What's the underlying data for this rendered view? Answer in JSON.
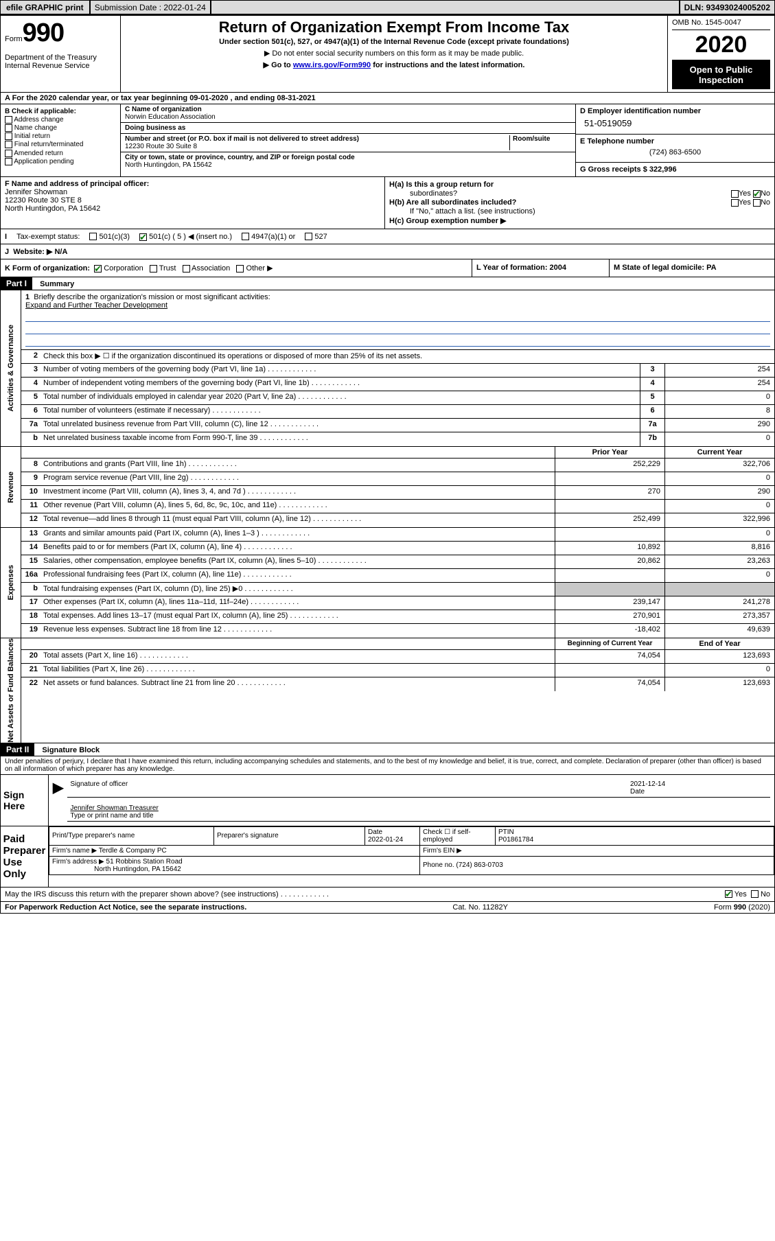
{
  "topbar": {
    "efile": "efile GRAPHIC print",
    "submission_label": "Submission Date : 2022-01-24",
    "dln": "DLN: 93493024005202"
  },
  "header": {
    "form_word": "Form",
    "form_num": "990",
    "dept": "Department of the Treasury\nInternal Revenue Service",
    "title": "Return of Organization Exempt From Income Tax",
    "sub1": "Under section 501(c), 527, or 4947(a)(1) of the Internal Revenue Code (except private foundations)",
    "sub2": "▶ Do not enter social security numbers on this form as it may be made public.",
    "sub3_pre": "▶ Go to ",
    "sub3_link": "www.irs.gov/Form990",
    "sub3_post": " for instructions and the latest information.",
    "omb": "OMB No. 1545-0047",
    "year": "2020",
    "inspect": "Open to Public Inspection"
  },
  "line_a": "A  For the 2020 calendar year, or tax year beginning 09-01-2020    , and ending 08-31-2021",
  "section_b": {
    "label": "B Check if applicable:",
    "address": "Address change",
    "name": "Name change",
    "initial": "Initial return",
    "final": "Final return/terminated",
    "amended": "Amended return",
    "app": "Application pending"
  },
  "section_c": {
    "name_lbl": "C Name of organization",
    "name": "Norwin Education Association",
    "dba_lbl": "Doing business as",
    "addr_lbl": "Number and street (or P.O. box if mail is not delivered to street address)",
    "room_lbl": "Room/suite",
    "addr": "12230 Route 30 Suite 8",
    "city_lbl": "City or town, state or province, country, and ZIP or foreign postal code",
    "city": "North Huntingdon, PA  15642"
  },
  "section_d": {
    "lbl": "D Employer identification number",
    "ein": "51-0519059",
    "tel_lbl": "E Telephone number",
    "tel": "(724) 863-6500",
    "gross_lbl": "G Gross receipts $ 322,996"
  },
  "section_f": {
    "lbl": "F  Name and address of principal officer:",
    "name": "Jennifer Showman",
    "addr1": "12230 Route 30 STE 8",
    "addr2": "North Huntingdon, PA  15642"
  },
  "section_h": {
    "a": "H(a)  Is this a group return for",
    "a2": "subordinates?",
    "b": "H(b)  Are all subordinates included?",
    "b2": "If \"No,\" attach a list. (see instructions)",
    "c": "H(c)  Group exemption number ▶",
    "yes": "Yes",
    "no": "No"
  },
  "tax_status": {
    "lbl": "Tax-exempt status:",
    "c3": "501(c)(3)",
    "c5": "501(c) ( 5 ) ◀ (insert no.)",
    "a1": "4947(a)(1) or",
    "s527": "527"
  },
  "row_j": {
    "lbl": "J",
    "txt": "Website: ▶  N/A"
  },
  "row_k": {
    "lbl": "K Form of organization:",
    "corp": "Corporation",
    "trust": "Trust",
    "assoc": "Association",
    "other": "Other ▶"
  },
  "row_l": "L Year of formation: 2004",
  "row_m": "M State of legal domicile: PA",
  "part1": {
    "hdr": "Part I",
    "title": "Summary"
  },
  "summary": {
    "sec1_label": "Activities & Governance",
    "line1_lbl": "Briefly describe the organization's mission or most significant activities:",
    "line1_txt": "Expand and Further Teacher Development",
    "line2": "Check this box ▶ ☐  if the organization discontinued its operations or disposed of more than 25% of its net assets.",
    "rows_ag": [
      {
        "n": "3",
        "t": "Number of voting members of the governing body (Part VI, line 1a)",
        "box": "3",
        "v": "254"
      },
      {
        "n": "4",
        "t": "Number of independent voting members of the governing body (Part VI, line 1b)",
        "box": "4",
        "v": "254"
      },
      {
        "n": "5",
        "t": "Total number of individuals employed in calendar year 2020 (Part V, line 2a)",
        "box": "5",
        "v": "0"
      },
      {
        "n": "6",
        "t": "Total number of volunteers (estimate if necessary)",
        "box": "6",
        "v": "8"
      },
      {
        "n": "7a",
        "t": "Total unrelated business revenue from Part VIII, column (C), line 12",
        "box": "7a",
        "v": "290"
      },
      {
        "n": "b",
        "t": "Net unrelated business taxable income from Form 990-T, line 39",
        "box": "7b",
        "v": "0"
      }
    ],
    "hdr_prior": "Prior Year",
    "hdr_current": "Current Year",
    "sec2_label": "Revenue",
    "rows_rev": [
      {
        "n": "8",
        "t": "Contributions and grants (Part VIII, line 1h)",
        "p": "252,229",
        "c": "322,706"
      },
      {
        "n": "9",
        "t": "Program service revenue (Part VIII, line 2g)",
        "p": "",
        "c": "0"
      },
      {
        "n": "10",
        "t": "Investment income (Part VIII, column (A), lines 3, 4, and 7d )",
        "p": "270",
        "c": "290"
      },
      {
        "n": "11",
        "t": "Other revenue (Part VIII, column (A), lines 5, 6d, 8c, 9c, 10c, and 11e)",
        "p": "",
        "c": "0"
      },
      {
        "n": "12",
        "t": "Total revenue—add lines 8 through 11 (must equal Part VIII, column (A), line 12)",
        "p": "252,499",
        "c": "322,996"
      }
    ],
    "sec3_label": "Expenses",
    "rows_exp": [
      {
        "n": "13",
        "t": "Grants and similar amounts paid (Part IX, column (A), lines 1–3 )",
        "p": "",
        "c": "0"
      },
      {
        "n": "14",
        "t": "Benefits paid to or for members (Part IX, column (A), line 4)",
        "p": "10,892",
        "c": "8,816"
      },
      {
        "n": "15",
        "t": "Salaries, other compensation, employee benefits (Part IX, column (A), lines 5–10)",
        "p": "20,862",
        "c": "23,263"
      },
      {
        "n": "16a",
        "t": "Professional fundraising fees (Part IX, column (A), line 11e)",
        "p": "",
        "c": "0"
      },
      {
        "n": "b",
        "t": "Total fundraising expenses (Part IX, column (D), line 25) ▶0",
        "p": "grey",
        "c": "grey"
      },
      {
        "n": "17",
        "t": "Other expenses (Part IX, column (A), lines 11a–11d, 11f–24e)",
        "p": "239,147",
        "c": "241,278"
      },
      {
        "n": "18",
        "t": "Total expenses. Add lines 13–17 (must equal Part IX, column (A), line 25)",
        "p": "270,901",
        "c": "273,357"
      },
      {
        "n": "19",
        "t": "Revenue less expenses. Subtract line 18 from line 12",
        "p": "-18,402",
        "c": "49,639"
      }
    ],
    "hdr_begin": "Beginning of Current Year",
    "hdr_end": "End of Year",
    "sec4_label": "Net Assets or Fund Balances",
    "rows_na": [
      {
        "n": "20",
        "t": "Total assets (Part X, line 16)",
        "p": "74,054",
        "c": "123,693"
      },
      {
        "n": "21",
        "t": "Total liabilities (Part X, line 26)",
        "p": "",
        "c": "0"
      },
      {
        "n": "22",
        "t": "Net assets or fund balances. Subtract line 21 from line 20",
        "p": "74,054",
        "c": "123,693"
      }
    ]
  },
  "part2": {
    "hdr": "Part II",
    "title": "Signature Block"
  },
  "sig": {
    "penalty": "Under penalties of perjury, I declare that I have examined this return, including accompanying schedules and statements, and to the best of my knowledge and belief, it is true, correct, and complete. Declaration of preparer (other than officer) is based on all information of which preparer has any knowledge.",
    "sign_here": "Sign Here",
    "sig_officer": "Signature of officer",
    "date": "2021-12-14",
    "date_lbl": "Date",
    "typed": "Jennifer Showman  Treasurer",
    "typed_lbl": "Type or print name and title",
    "paid": "Paid Preparer Use Only",
    "prep_name_lbl": "Print/Type preparer's name",
    "prep_sig_lbl": "Preparer's signature",
    "prep_date_lbl": "Date",
    "prep_date": "2022-01-24",
    "check_lbl": "Check ☐ if self-employed",
    "ptin_lbl": "PTIN",
    "ptin": "P01861784",
    "firm_name_lbl": "Firm's name    ▶",
    "firm_name": "Terdle & Company PC",
    "firm_ein_lbl": "Firm's EIN ▶",
    "firm_addr_lbl": "Firm's address ▶",
    "firm_addr1": "51 Robbins Station Road",
    "firm_addr2": "North Huntingdon, PA  15642",
    "phone_lbl": "Phone no. (724) 863-0703",
    "discuss": "May the IRS discuss this return with the preparer shown above? (see instructions)"
  },
  "footer": {
    "left": "For Paperwork Reduction Act Notice, see the separate instructions.",
    "mid": "Cat. No. 11282Y",
    "right": "Form 990 (2020)"
  }
}
